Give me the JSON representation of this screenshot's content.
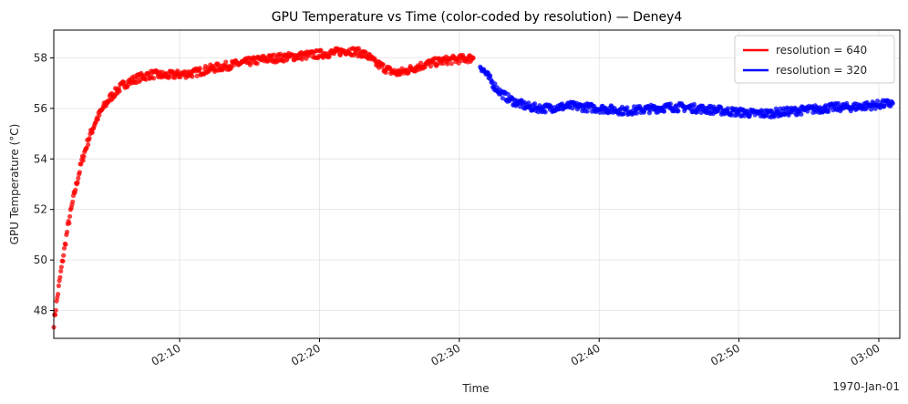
{
  "chart_data": {
    "type": "scatter",
    "title": "GPU Temperature vs Time (color-coded by resolution) — Deney4",
    "xlabel": "Time",
    "ylabel": "GPU Temperature (°C)",
    "date_offset_label": "1970-Jan-01",
    "xlim": [
      "02:01:00",
      "03:01:30"
    ],
    "ylim": [
      46.9,
      59.1
    ],
    "x_ticks": [
      "02:10",
      "02:20",
      "02:30",
      "02:40",
      "02:50",
      "03:00"
    ],
    "y_ticks": [
      48,
      50,
      52,
      54,
      56,
      58
    ],
    "grid": true,
    "legend_position": "top-right",
    "series": [
      {
        "name": "resolution = 640",
        "color": "#ff0000",
        "points": [
          [
            "02:01:00",
            47.5
          ],
          [
            "02:01:30",
            49.5
          ],
          [
            "02:02:00",
            51.3
          ],
          [
            "02:02:30",
            52.7
          ],
          [
            "02:03:00",
            53.9
          ],
          [
            "02:03:30",
            54.8
          ],
          [
            "02:04:00",
            55.5
          ],
          [
            "02:04:30",
            56.0
          ],
          [
            "02:05:00",
            56.4
          ],
          [
            "02:05:30",
            56.7
          ],
          [
            "02:06:00",
            56.95
          ],
          [
            "02:07:00",
            57.2
          ],
          [
            "02:08:00",
            57.35
          ],
          [
            "02:09:00",
            57.3
          ],
          [
            "02:10:00",
            57.35
          ],
          [
            "02:11:00",
            57.4
          ],
          [
            "02:12:00",
            57.55
          ],
          [
            "02:13:00",
            57.65
          ],
          [
            "02:14:00",
            57.75
          ],
          [
            "02:15:00",
            57.85
          ],
          [
            "02:16:00",
            57.95
          ],
          [
            "02:17:00",
            58.0
          ],
          [
            "02:18:00",
            58.05
          ],
          [
            "02:19:00",
            58.1
          ],
          [
            "02:20:00",
            58.15
          ],
          [
            "02:21:00",
            58.2
          ],
          [
            "02:22:00",
            58.3
          ],
          [
            "02:23:00",
            58.2
          ],
          [
            "02:23:30",
            58.05
          ],
          [
            "02:24:00",
            57.8
          ],
          [
            "02:25:00",
            57.5
          ],
          [
            "02:25:30",
            57.4
          ],
          [
            "02:26:00",
            57.45
          ],
          [
            "02:27:00",
            57.65
          ],
          [
            "02:28:00",
            57.8
          ],
          [
            "02:29:00",
            57.9
          ],
          [
            "02:30:00",
            57.95
          ],
          [
            "02:31:00",
            58.0
          ]
        ]
      },
      {
        "name": "resolution = 320",
        "color": "#0000ff",
        "points": [
          [
            "02:31:30",
            57.7
          ],
          [
            "02:32:00",
            57.3
          ],
          [
            "02:32:30",
            56.9
          ],
          [
            "02:33:00",
            56.6
          ],
          [
            "02:33:30",
            56.4
          ],
          [
            "02:34:00",
            56.25
          ],
          [
            "02:35:00",
            56.05
          ],
          [
            "02:36:00",
            56.0
          ],
          [
            "02:37:00",
            56.05
          ],
          [
            "02:38:00",
            56.1
          ],
          [
            "02:39:00",
            56.05
          ],
          [
            "02:40:00",
            56.0
          ],
          [
            "02:41:00",
            55.95
          ],
          [
            "02:42:00",
            55.9
          ],
          [
            "02:43:00",
            55.95
          ],
          [
            "02:44:00",
            56.0
          ],
          [
            "02:45:00",
            56.05
          ],
          [
            "02:46:00",
            56.05
          ],
          [
            "02:47:00",
            56.0
          ],
          [
            "02:48:00",
            55.95
          ],
          [
            "02:49:00",
            55.9
          ],
          [
            "02:50:00",
            55.85
          ],
          [
            "02:51:00",
            55.8
          ],
          [
            "02:52:00",
            55.8
          ],
          [
            "02:53:00",
            55.85
          ],
          [
            "02:54:00",
            55.9
          ],
          [
            "02:55:00",
            55.95
          ],
          [
            "02:56:00",
            56.0
          ],
          [
            "02:57:00",
            56.05
          ],
          [
            "02:58:00",
            56.05
          ],
          [
            "02:59:00",
            56.1
          ],
          [
            "03:00:00",
            56.15
          ],
          [
            "03:01:00",
            56.2
          ]
        ]
      }
    ]
  }
}
